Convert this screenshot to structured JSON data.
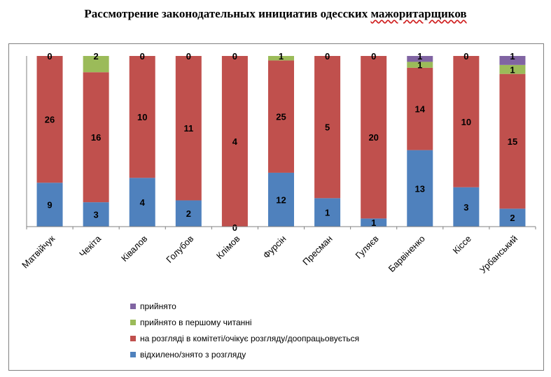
{
  "title_main": "Рассмотрение законодательных инициатив одесских ",
  "title_underlined": "мажоритарщиков",
  "colors": {
    "prinyato": "#8064a2",
    "pershe": "#9bbb59",
    "rozglyad": "#c0504d",
    "vidkhyleno": "#4f81bd"
  },
  "legend": [
    {
      "key": "prinyato",
      "label": "прийнято"
    },
    {
      "key": "pershe",
      "label": "прийнято в першому читанні"
    },
    {
      "key": "rozglyad",
      "label": "на розгляді в комітеті/очікує розгляду/доопрацьовується"
    },
    {
      "key": "vidkhyleno",
      "label": "відхилено/знято з розгляду"
    }
  ],
  "chart_data": {
    "type": "bar",
    "stacked": "percent",
    "categories": [
      "Матвійчук",
      "Чекіта",
      "Ківалов",
      "Голубов",
      "Клімов",
      "Фурсін",
      "Пресман",
      "Гуляєв",
      "Барвіненко",
      "Кіссе",
      "Урбанський"
    ],
    "series": [
      {
        "name": "відхилено/знято з розгляду",
        "key": "vidkhyleno",
        "values": [
          9,
          3,
          4,
          2,
          0,
          12,
          1,
          1,
          13,
          3,
          2
        ]
      },
      {
        "name": "на розгляді в комітеті/очікує розгляду/доопрацьовується",
        "key": "rozglyad",
        "values": [
          26,
          16,
          10,
          11,
          4,
          25,
          5,
          20,
          14,
          10,
          15
        ]
      },
      {
        "name": "прийнято в першому читанні",
        "key": "pershe",
        "values": [
          0,
          2,
          0,
          0,
          0,
          1,
          0,
          0,
          1,
          0,
          1
        ]
      },
      {
        "name": "прийнято",
        "key": "prinyato",
        "values": [
          0,
          0,
          0,
          0,
          0,
          0,
          0,
          0,
          1,
          0,
          1
        ]
      }
    ],
    "top_labels": [
      "0",
      "2",
      "0",
      "0",
      "0",
      "1",
      "0",
      "0",
      "1",
      "0",
      "1"
    ],
    "bottom_labels": [
      "9",
      "3",
      "4",
      "2",
      "0",
      "12",
      "1",
      "1",
      "13",
      "3",
      "2"
    ],
    "xlabel": "",
    "ylabel": "",
    "grid": false,
    "legend_position": "bottom"
  }
}
